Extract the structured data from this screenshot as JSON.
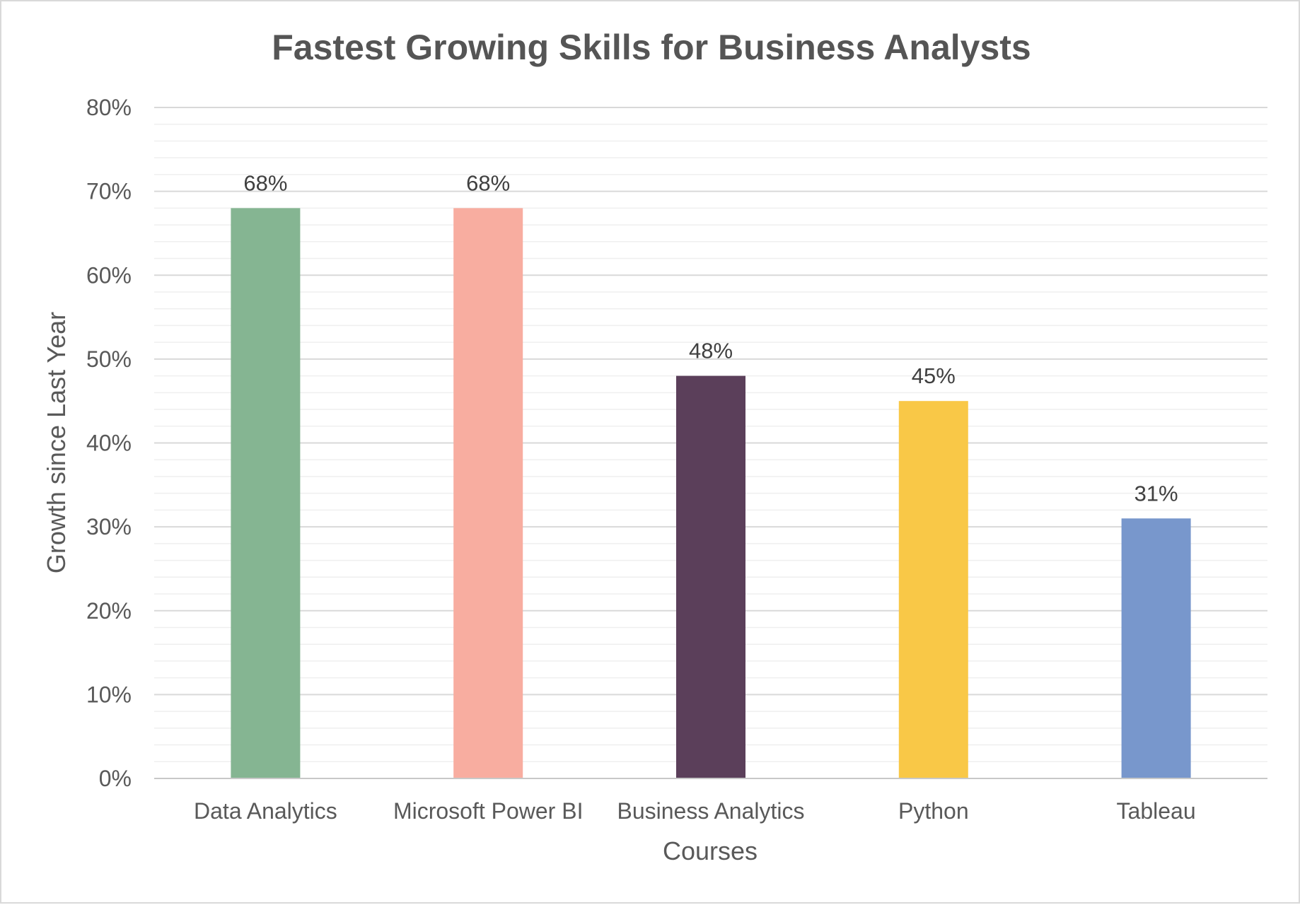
{
  "chart_data": {
    "type": "bar",
    "title": "Fastest Growing Skills for Business Analysts",
    "xlabel": "Courses",
    "ylabel": "Growth since Last Year",
    "categories": [
      "Data Analytics",
      "Microsoft Power BI",
      "Business Analytics",
      "Python",
      "Tableau"
    ],
    "values": [
      68,
      68,
      48,
      45,
      31
    ],
    "data_labels": [
      "68%",
      "68%",
      "48%",
      "45%",
      "31%"
    ],
    "colors": [
      "#85b592",
      "#f8ada0",
      "#5b3f5a",
      "#f9c847",
      "#7897cc"
    ],
    "ylim": [
      0,
      80
    ],
    "yticks": [
      0,
      10,
      20,
      30,
      40,
      50,
      60,
      70,
      80
    ],
    "ytick_labels": [
      "0%",
      "10%",
      "20%",
      "30%",
      "40%",
      "50%",
      "60%",
      "70%",
      "80%"
    ],
    "major_gridlines": true,
    "minor_gridlines": true,
    "legend": "none"
  }
}
